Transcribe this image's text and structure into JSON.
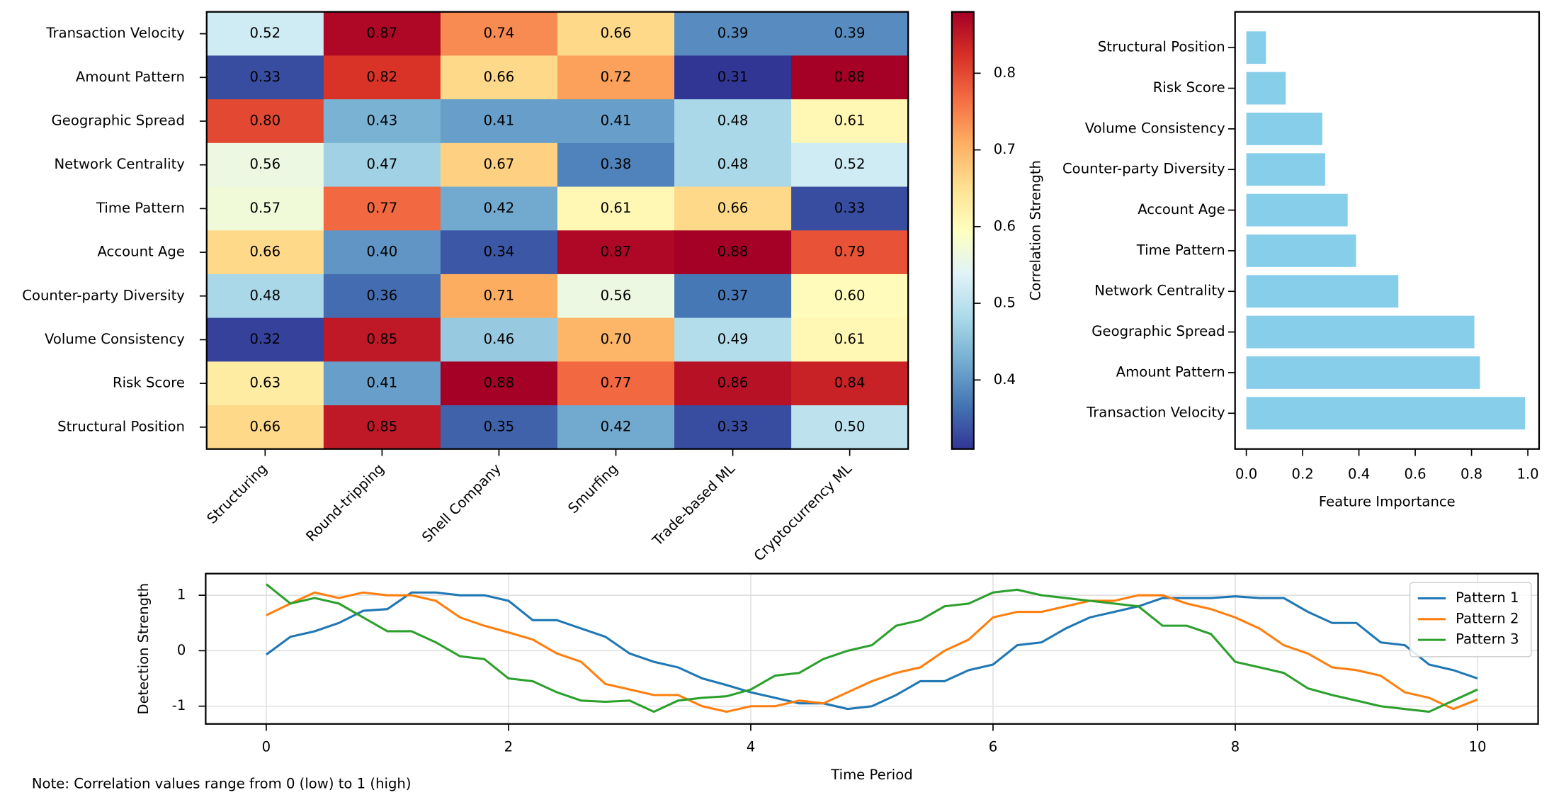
{
  "chart_data": [
    {
      "type": "heatmap",
      "rows": [
        "Transaction Velocity",
        "Amount Pattern",
        "Geographic Spread",
        "Network Centrality",
        "Time Pattern",
        "Account Age",
        "Counter-party Diversity",
        "Volume Consistency",
        "Risk Score",
        "Structural Position"
      ],
      "columns": [
        "Structuring",
        "Round-tripping",
        "Shell Company",
        "Smurfing",
        "Trade-based ML",
        "Cryptocurrency ML"
      ],
      "values": [
        [
          0.52,
          0.87,
          0.74,
          0.66,
          0.39,
          0.39
        ],
        [
          0.33,
          0.82,
          0.66,
          0.72,
          0.31,
          0.88
        ],
        [
          0.8,
          0.43,
          0.41,
          0.41,
          0.48,
          0.61
        ],
        [
          0.56,
          0.47,
          0.67,
          0.38,
          0.48,
          0.52
        ],
        [
          0.57,
          0.77,
          0.42,
          0.61,
          0.66,
          0.33
        ],
        [
          0.66,
          0.4,
          0.34,
          0.87,
          0.88,
          0.79
        ],
        [
          0.48,
          0.36,
          0.71,
          0.56,
          0.37,
          0.6
        ],
        [
          0.32,
          0.85,
          0.46,
          0.7,
          0.49,
          0.61
        ],
        [
          0.63,
          0.41,
          0.88,
          0.77,
          0.86,
          0.84
        ],
        [
          0.66,
          0.85,
          0.35,
          0.42,
          0.33,
          0.5
        ]
      ],
      "value_labels": [
        [
          "0.52",
          "0.87",
          "0.74",
          "0.66",
          "0.39",
          "0.39"
        ],
        [
          "0.33",
          "0.82",
          "0.66",
          "0.72",
          "0.31",
          "0.88"
        ],
        [
          "0.80",
          "0.43",
          "0.41",
          "0.41",
          "0.48",
          "0.61"
        ],
        [
          "0.56",
          "0.47",
          "0.67",
          "0.38",
          "0.48",
          "0.52"
        ],
        [
          "0.57",
          "0.77",
          "0.42",
          "0.61",
          "0.66",
          "0.33"
        ],
        [
          "0.66",
          "0.40",
          "0.34",
          "0.87",
          "0.88",
          "0.79"
        ],
        [
          "0.48",
          "0.36",
          "0.71",
          "0.56",
          "0.37",
          "0.60"
        ],
        [
          "0.32",
          "0.85",
          "0.46",
          "0.70",
          "0.49",
          "0.61"
        ],
        [
          "0.63",
          "0.41",
          "0.88",
          "0.77",
          "0.86",
          "0.84"
        ],
        [
          "0.66",
          "0.85",
          "0.35",
          "0.42",
          "0.33",
          "0.50"
        ]
      ],
      "colormap": [
        "#313695",
        "#4575b4",
        "#74add1",
        "#abd9e9",
        "#e0f3f8",
        "#ffffbf",
        "#fee090",
        "#fdae61",
        "#f46d43",
        "#d73027",
        "#a50026"
      ],
      "clim": [
        0.31,
        0.88
      ],
      "cticks": [
        0.4,
        0.5,
        0.6,
        0.7,
        0.8
      ],
      "colorbar_label": "Correlation Strength"
    },
    {
      "type": "barh",
      "categories": [
        "Transaction Velocity",
        "Amount Pattern",
        "Geographic Spread",
        "Network Centrality",
        "Time Pattern",
        "Account Age",
        "Counter-party Diversity",
        "Volume Consistency",
        "Risk Score",
        "Structural Position"
      ],
      "values": [
        0.99,
        0.83,
        0.81,
        0.54,
        0.39,
        0.36,
        0.28,
        0.27,
        0.14,
        0.07
      ],
      "color": "#87ceeb",
      "xlim": [
        -0.04,
        1.04
      ],
      "xticks": [
        {
          "value": 0,
          "label": "0.0"
        },
        0.2,
        0.4,
        0.6,
        0.8,
        {
          "value": 1,
          "label": "1.0"
        }
      ],
      "xlabel": "Feature Importance"
    },
    {
      "type": "line",
      "x": [
        0,
        0.2,
        0.4,
        0.6,
        0.8,
        1,
        1.2,
        1.4,
        1.6,
        1.8,
        2,
        2.2,
        2.4,
        2.6,
        2.8,
        3,
        3.2,
        3.4,
        3.6,
        3.8,
        4,
        4.2,
        4.4,
        4.6,
        4.8,
        5,
        5.2,
        5.4,
        5.6,
        5.8,
        6,
        6.2,
        6.4,
        6.6,
        6.8,
        7,
        7.2,
        7.4,
        7.6,
        7.8,
        8,
        8.2,
        8.4,
        8.6,
        8.8,
        9,
        9.2,
        9.4,
        9.6,
        9.8,
        10
      ],
      "series": [
        {
          "name": "Pattern 1",
          "color": "#1f77b4",
          "values": [
            -0.07,
            0.25,
            0.35,
            0.5,
            0.72,
            0.75,
            1.05,
            1.05,
            1.0,
            1.0,
            0.9,
            0.55,
            0.55,
            0.4,
            0.25,
            -0.05,
            -0.2,
            -0.3,
            -0.5,
            -0.62,
            -0.75,
            -0.85,
            -0.95,
            -0.95,
            -1.05,
            -1.0,
            -0.8,
            -0.55,
            -0.55,
            -0.35,
            -0.25,
            0.1,
            0.15,
            0.4,
            0.6,
            0.7,
            0.8,
            0.95,
            0.95,
            0.95,
            0.98,
            0.95,
            0.95,
            0.7,
            0.5,
            0.5,
            0.15,
            0.1,
            -0.25,
            -0.35,
            -0.5
          ]
        },
        {
          "name": "Pattern 2",
          "color": "#ff7f0e",
          "values": [
            0.64,
            0.85,
            1.05,
            0.95,
            1.05,
            1.0,
            1.0,
            0.9,
            0.6,
            0.45,
            0.33,
            0.2,
            -0.05,
            -0.2,
            -0.6,
            -0.7,
            -0.8,
            -0.8,
            -1.0,
            -1.1,
            -1.0,
            -1.0,
            -0.9,
            -0.95,
            -0.75,
            -0.55,
            -0.4,
            -0.3,
            0.0,
            0.2,
            0.6,
            0.7,
            0.7,
            0.8,
            0.9,
            0.9,
            1.0,
            1.0,
            0.85,
            0.75,
            0.6,
            0.4,
            0.1,
            -0.05,
            -0.3,
            -0.35,
            -0.45,
            -0.75,
            -0.85,
            -1.05,
            -0.88
          ]
        },
        {
          "name": "Pattern 3",
          "color": "#2ca02c",
          "values": [
            1.2,
            0.85,
            0.95,
            0.85,
            0.6,
            0.35,
            0.35,
            0.15,
            -0.1,
            -0.15,
            -0.5,
            -0.55,
            -0.75,
            -0.9,
            -0.92,
            -0.9,
            -1.1,
            -0.9,
            -0.85,
            -0.82,
            -0.7,
            -0.45,
            -0.4,
            -0.15,
            0.0,
            0.1,
            0.45,
            0.55,
            0.8,
            0.85,
            1.05,
            1.1,
            1.0,
            0.95,
            0.9,
            0.85,
            0.8,
            0.45,
            0.45,
            0.3,
            -0.2,
            -0.3,
            -0.4,
            -0.68,
            -0.8,
            -0.9,
            -1.0,
            -1.05,
            -1.1,
            -0.9,
            -0.7
          ]
        }
      ],
      "xlim": [
        -0.5,
        10.5
      ],
      "xticks": [
        0,
        2,
        4,
        6,
        8,
        10
      ],
      "ylim": [
        -1.32,
        1.39
      ],
      "yticks": [
        -1,
        0,
        1
      ],
      "xlabel": "Time Period",
      "ylabel": "Detection Strength",
      "grid": true,
      "legend": "upper right"
    }
  ],
  "note": "Note: Correlation values range from 0 (low) to 1 (high)"
}
